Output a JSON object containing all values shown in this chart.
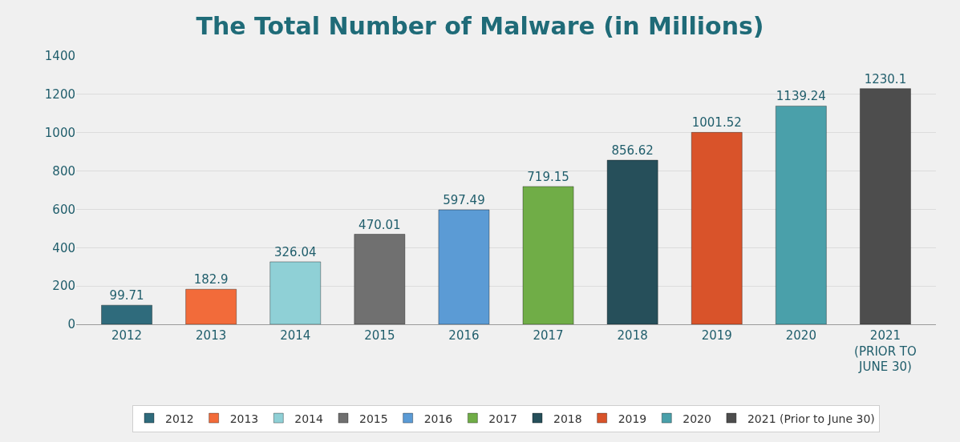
{
  "chart_data": {
    "type": "bar",
    "title": "The Total Number of Malware (in Millions)",
    "categories": [
      "2012",
      "2013",
      "2014",
      "2015",
      "2016",
      "2017",
      "2018",
      "2019",
      "2020",
      "2021 (PRIOR TO JUNE 30)"
    ],
    "series": [
      {
        "name": "2012",
        "color": "#2f6b7c",
        "values": [
          99.71,
          null,
          null,
          null,
          null,
          null,
          null,
          null,
          null,
          null
        ]
      },
      {
        "name": "2013",
        "color": "#f26b3a",
        "values": [
          null,
          182.9,
          null,
          null,
          null,
          null,
          null,
          null,
          null,
          null
        ]
      },
      {
        "name": "2014",
        "color": "#8fd0d6",
        "values": [
          null,
          null,
          326.04,
          null,
          null,
          null,
          null,
          null,
          null,
          null
        ]
      },
      {
        "name": "2015",
        "color": "#707070",
        "values": [
          null,
          null,
          null,
          470.01,
          null,
          null,
          null,
          null,
          null,
          null
        ]
      },
      {
        "name": "2016",
        "color": "#5b9bd5",
        "values": [
          null,
          null,
          null,
          null,
          597.49,
          null,
          null,
          null,
          null,
          null
        ]
      },
      {
        "name": "2017",
        "color": "#70ad47",
        "values": [
          null,
          null,
          null,
          null,
          null,
          719.15,
          null,
          null,
          null,
          null
        ]
      },
      {
        "name": "2018",
        "color": "#264f5a",
        "values": [
          null,
          null,
          null,
          null,
          null,
          null,
          856.62,
          null,
          null,
          null
        ]
      },
      {
        "name": "2019",
        "color": "#d9532a",
        "values": [
          null,
          null,
          null,
          null,
          null,
          null,
          null,
          1001.52,
          null,
          null
        ]
      },
      {
        "name": "2020",
        "color": "#4aa0aa",
        "values": [
          null,
          null,
          null,
          null,
          null,
          null,
          null,
          null,
          1139.24,
          null
        ]
      },
      {
        "name": "2021 (Prior to June 30)",
        "color": "#4d4d4d",
        "values": [
          null,
          null,
          null,
          null,
          null,
          null,
          null,
          null,
          null,
          1230.1
        ]
      }
    ],
    "ylim": [
      0,
      1400
    ],
    "yticks": [
      0,
      200,
      400,
      600,
      800,
      1000,
      1200,
      1400
    ],
    "grid": "y",
    "legend": "bottom",
    "data_labels": true
  }
}
